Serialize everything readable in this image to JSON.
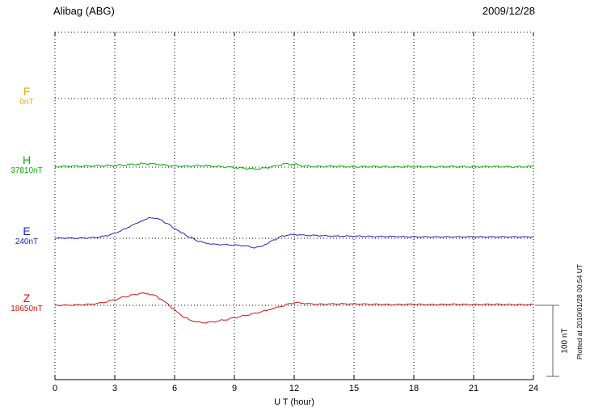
{
  "header": {
    "station": "Alibag (ABG)",
    "date": "2009/12/28"
  },
  "scale_bar": {
    "label": "100 nT"
  },
  "footer": {
    "note": "Plotted at 2010/01/28 00:54 UT"
  },
  "chart_data": {
    "type": "line",
    "title": "Alibag (ABG) magnetogram 2009/12/28",
    "xlabel": "U T (hour)",
    "x_range": [
      0,
      24
    ],
    "x_ticks": [
      "0",
      "3",
      "6",
      "9",
      "12",
      "15",
      "18",
      "21",
      "24"
    ],
    "grid": "dotted vertical lines every 3 h; dotted horizontal baseline per channel; solid bottom axis",
    "y_unit": "nT",
    "offset_unit": "nT relative to each channel baseline",
    "scale_bar_nT": 100,
    "series": [
      {
        "name": "F",
        "baseline_value_label": "0nT",
        "color": "#eeaa00",
        "points": []
      },
      {
        "name": "H",
        "baseline_value_label": "37810nT",
        "color": "#00b400",
        "points": [
          [
            0,
            1
          ],
          [
            1,
            1.5
          ],
          [
            2,
            2
          ],
          [
            3,
            2.5
          ],
          [
            4,
            4
          ],
          [
            4.5,
            5
          ],
          [
            5,
            4.5
          ],
          [
            5.5,
            3
          ],
          [
            6,
            2
          ],
          [
            6.5,
            1.5
          ],
          [
            7,
            2
          ],
          [
            7.5,
            2.5
          ],
          [
            8,
            1.5
          ],
          [
            8.5,
            0.5
          ],
          [
            9,
            -0.5
          ],
          [
            9.5,
            -1.5
          ],
          [
            10,
            -2.5
          ],
          [
            10.5,
            -1.5
          ],
          [
            11,
            1.5
          ],
          [
            11.5,
            4.5
          ],
          [
            12,
            4
          ],
          [
            12.5,
            2
          ],
          [
            13,
            1
          ],
          [
            14,
            1.5
          ],
          [
            15,
            0.5
          ],
          [
            16,
            1
          ],
          [
            17,
            0.5
          ],
          [
            18,
            1
          ],
          [
            19,
            0.5
          ],
          [
            20,
            1
          ],
          [
            21,
            0.5
          ],
          [
            22,
            1
          ],
          [
            23,
            0.5
          ],
          [
            24,
            1
          ]
        ]
      },
      {
        "name": "E",
        "baseline_value_label": "240nT",
        "color": "#2222cc",
        "points": [
          [
            0,
            0
          ],
          [
            0.5,
            0.3
          ],
          [
            1,
            0
          ],
          [
            1.5,
            0.4
          ],
          [
            2,
            1
          ],
          [
            2.5,
            3
          ],
          [
            3,
            7
          ],
          [
            3.5,
            13
          ],
          [
            4,
            20
          ],
          [
            4.5,
            26
          ],
          [
            4.8,
            29
          ],
          [
            5,
            28.5
          ],
          [
            5.3,
            26
          ],
          [
            5.6,
            21
          ],
          [
            6,
            14
          ],
          [
            6.4,
            7
          ],
          [
            6.8,
            1
          ],
          [
            7.2,
            -4
          ],
          [
            7.6,
            -7
          ],
          [
            8,
            -8.5
          ],
          [
            8.5,
            -9
          ],
          [
            9,
            -9.5
          ],
          [
            9.5,
            -10.5
          ],
          [
            10,
            -13
          ],
          [
            10.3,
            -12
          ],
          [
            10.6,
            -8
          ],
          [
            11,
            -2
          ],
          [
            11.4,
            3
          ],
          [
            11.8,
            5
          ],
          [
            12.2,
            5
          ],
          [
            12.6,
            4
          ],
          [
            13,
            4
          ],
          [
            13.5,
            3.5
          ],
          [
            14,
            3
          ],
          [
            15,
            3
          ],
          [
            16,
            2.5
          ],
          [
            17,
            2.5
          ],
          [
            18,
            2
          ],
          [
            19,
            2
          ],
          [
            20,
            2
          ],
          [
            21,
            2
          ],
          [
            22,
            2
          ],
          [
            23,
            2
          ],
          [
            24,
            2
          ]
        ]
      },
      {
        "name": "Z",
        "baseline_value_label": "18650nT",
        "color": "#dd1111",
        "points": [
          [
            0,
            0
          ],
          [
            0.5,
            0.2
          ],
          [
            1,
            0.5
          ],
          [
            1.5,
            1
          ],
          [
            2,
            2
          ],
          [
            2.5,
            4.5
          ],
          [
            3,
            8
          ],
          [
            3.5,
            12
          ],
          [
            4,
            15
          ],
          [
            4.3,
            17
          ],
          [
            4.6,
            16.5
          ],
          [
            5,
            14
          ],
          [
            5.3,
            9
          ],
          [
            5.6,
            3
          ],
          [
            5.9,
            -4
          ],
          [
            6.2,
            -11
          ],
          [
            6.5,
            -17
          ],
          [
            6.8,
            -21
          ],
          [
            7.1,
            -23.5
          ],
          [
            7.5,
            -24.5
          ],
          [
            8,
            -23
          ],
          [
            8.5,
            -20.5
          ],
          [
            9,
            -17.5
          ],
          [
            9.5,
            -14.5
          ],
          [
            10,
            -11.5
          ],
          [
            10.5,
            -8
          ],
          [
            11,
            -4
          ],
          [
            11.4,
            -1
          ],
          [
            11.8,
            2.5
          ],
          [
            12.1,
            4
          ],
          [
            12.4,
            3
          ],
          [
            12.8,
            2
          ],
          [
            13.2,
            1.5
          ],
          [
            14,
            2
          ],
          [
            15,
            2
          ],
          [
            16,
            1.5
          ],
          [
            17,
            1
          ],
          [
            18,
            1.5
          ],
          [
            19,
            1
          ],
          [
            20,
            1.5
          ],
          [
            21,
            1
          ],
          [
            22,
            1.5
          ],
          [
            23,
            1
          ],
          [
            24,
            1
          ]
        ]
      }
    ]
  }
}
